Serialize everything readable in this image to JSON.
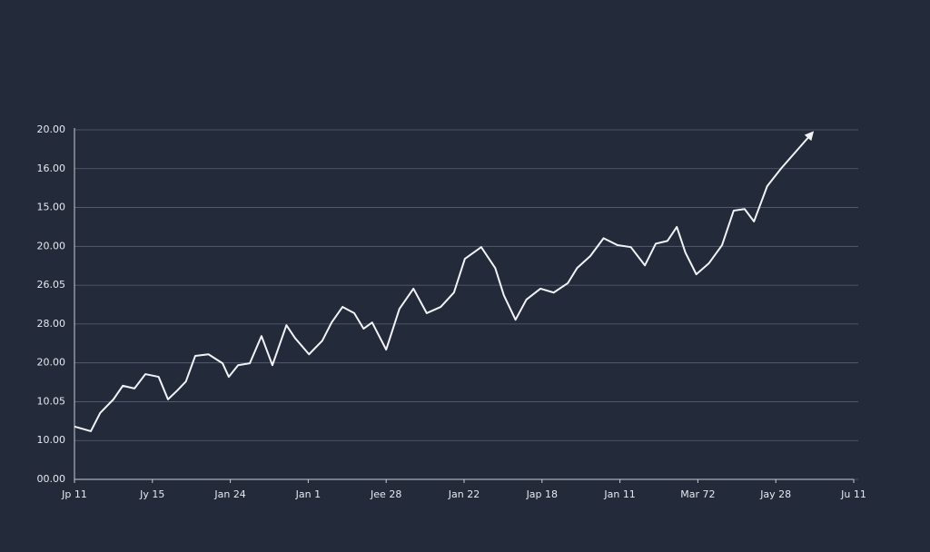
{
  "chart_data": {
    "type": "line",
    "categories": [
      "Jp 11",
      "Jy 15",
      "Jan 24",
      "Jan 1",
      "Jee 28",
      "Jan 22",
      "Jap 18",
      "Jan 11",
      "Mar 72",
      "Jay 28",
      "Ju 11"
    ],
    "xlim": [
      0,
      10
    ],
    "ylim": [
      0,
      9
    ],
    "yticks": [
      {
        "value": 0,
        "label": "00.00"
      },
      {
        "value": 1,
        "label": "10.00"
      },
      {
        "value": 2,
        "label": "10.05"
      },
      {
        "value": 3,
        "label": "20.00"
      },
      {
        "value": 4,
        "label": "28.00"
      },
      {
        "value": 5,
        "label": "26.05"
      },
      {
        "value": 6,
        "label": "20.00"
      },
      {
        "value": 7,
        "label": "15.00"
      },
      {
        "value": 8,
        "label": "16.00"
      },
      {
        "value": 9,
        "label": "20.00"
      }
    ],
    "grid": true,
    "color": "#f2f3f6",
    "x": [
      0,
      0.21,
      0.33,
      0.5,
      0.62,
      0.77,
      0.91,
      1.08,
      1.2,
      1.32,
      1.43,
      1.55,
      1.72,
      1.9,
      1.98,
      2.1,
      2.25,
      2.4,
      2.54,
      2.72,
      2.83,
      3.01,
      3.18,
      3.3,
      3.44,
      3.59,
      3.71,
      3.82,
      4.0,
      4.17,
      4.35,
      4.52,
      4.7,
      4.87,
      5.01,
      5.22,
      5.4,
      5.51,
      5.66,
      5.8,
      5.98,
      6.15,
      6.33,
      6.45,
      6.62,
      6.79,
      6.97,
      7.14,
      7.32,
      7.46,
      7.61,
      7.73,
      7.84,
      7.98,
      8.14,
      8.31,
      8.46,
      8.6,
      8.72,
      8.89,
      9.07,
      9.45
    ],
    "values": [
      1.36,
      1.24,
      1.71,
      2.06,
      2.41,
      2.34,
      2.71,
      2.64,
      2.06,
      2.29,
      2.52,
      3.18,
      3.22,
      2.99,
      2.64,
      2.94,
      2.99,
      3.69,
      2.94,
      3.97,
      3.64,
      3.22,
      3.57,
      4.04,
      4.44,
      4.28,
      3.88,
      4.04,
      3.34,
      4.39,
      4.91,
      4.28,
      4.44,
      4.81,
      5.68,
      5.98,
      5.44,
      4.74,
      4.11,
      4.63,
      4.91,
      4.81,
      5.05,
      5.44,
      5.75,
      6.21,
      6.03,
      5.98,
      5.51,
      6.07,
      6.14,
      6.5,
      5.84,
      5.28,
      5.56,
      6.03,
      6.92,
      6.96,
      6.64,
      7.55,
      8.01,
      8.88
    ]
  }
}
